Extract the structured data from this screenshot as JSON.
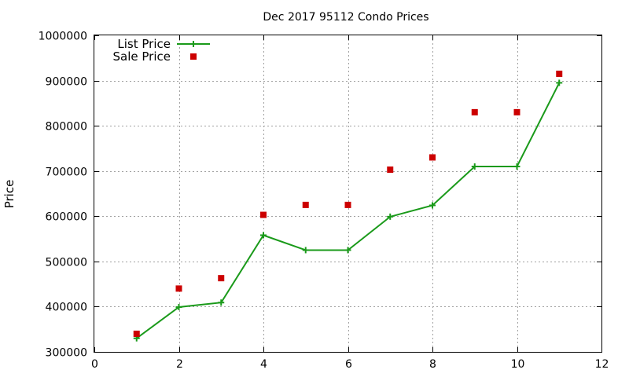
{
  "chart_data": {
    "type": "line",
    "title": "Dec 2017 95112 Condo Prices",
    "xlabel": "",
    "ylabel": "Price",
    "xlim": [
      0,
      12
    ],
    "ylim": [
      300000,
      1000000
    ],
    "xticks": [
      0,
      2,
      4,
      6,
      8,
      10,
      12
    ],
    "yticks": [
      300000,
      400000,
      500000,
      600000,
      700000,
      800000,
      900000,
      1000000
    ],
    "grid": true,
    "legend_position": "top-left",
    "series": [
      {
        "name": "List Price",
        "style": "line-with-plus-markers",
        "color": "#1a9a1a",
        "x": [
          1,
          2,
          3,
          4,
          5,
          6,
          7,
          8,
          9,
          10,
          11
        ],
        "y": [
          330000,
          399000,
          409000,
          558000,
          525000,
          525000,
          599000,
          624000,
          710000,
          710000,
          895000
        ]
      },
      {
        "name": "Sale Price",
        "style": "square-markers",
        "color": "#cc0000",
        "x": [
          1,
          2,
          3,
          4,
          5,
          6,
          7,
          8,
          9,
          10,
          11
        ],
        "y": [
          340000,
          440000,
          463000,
          603000,
          625000,
          625000,
          703000,
          730000,
          830000,
          830000,
          915000
        ]
      }
    ]
  }
}
